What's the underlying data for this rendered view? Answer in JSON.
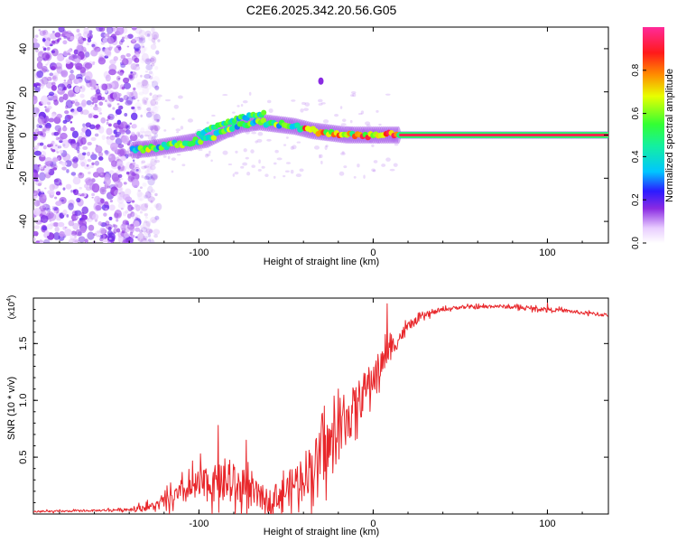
{
  "figure_title": "C2E6.2025.342.20.56.G05",
  "chart_data": [
    {
      "type": "heatmap",
      "title": "C2E6.2025.342.20.56.G05",
      "xlabel": "Height of straight line (km)",
      "ylabel": "Frequency (Hz)",
      "xlim": [
        -195,
        135
      ],
      "ylim": [
        -50,
        50
      ],
      "xticks": [
        -100,
        0,
        100
      ],
      "xtick_labels": [
        "-100",
        "0",
        "100"
      ],
      "yticks": [
        -40,
        -20,
        0,
        20,
        40
      ],
      "ytick_labels": [
        "-40",
        "-20",
        "0",
        "20",
        "40"
      ],
      "colorbar": {
        "label": "Normalized spectral amplitude",
        "range": [
          0,
          1
        ],
        "ticks": [
          0.0,
          0.2,
          0.4,
          0.6,
          0.8
        ],
        "tick_labels": [
          "0.0",
          "0.2",
          "0.4",
          "0.6",
          "0.8"
        ]
      },
      "ridge": {
        "description_points_km_hz": [
          [
            -138,
            -7
          ],
          [
            -125,
            -6
          ],
          [
            -110,
            -4
          ],
          [
            -95,
            -2
          ],
          [
            -85,
            2
          ],
          [
            -75,
            5
          ],
          [
            -65,
            6
          ],
          [
            -55,
            5
          ],
          [
            -45,
            4
          ],
          [
            -35,
            2
          ],
          [
            -25,
            1
          ],
          [
            -15,
            0
          ],
          [
            0,
            0
          ],
          [
            20,
            0
          ],
          [
            60,
            0
          ],
          [
            100,
            0
          ],
          [
            135,
            0
          ]
        ],
        "upper_branch_km_hz": [
          [
            -100,
            0
          ],
          [
            -90,
            4
          ],
          [
            -80,
            7
          ],
          [
            -70,
            9
          ],
          [
            -62,
            10
          ]
        ],
        "outlier_km_hz": [
          -30,
          25
        ]
      },
      "noise_region_km": [
        -195,
        -135
      ]
    },
    {
      "type": "line",
      "title": "",
      "xlabel": "Height of straight line (km)",
      "ylabel": "SNR (10 * v/v)",
      "scale_label": "(x10",
      "scale_exponent": "4",
      "xlim": [
        -195,
        135
      ],
      "ylim": [
        0,
        1.9
      ],
      "xticks": [
        -100,
        0,
        100
      ],
      "xtick_labels": [
        "-100",
        "0",
        "100"
      ],
      "yticks": [
        0.5,
        1.0,
        1.5
      ],
      "ytick_labels": [
        "0.5",
        "1.0",
        "1.5"
      ],
      "color": "#e8262a",
      "envelope": {
        "x": [
          -195,
          -160,
          -140,
          -125,
          -110,
          -100,
          -90,
          -80,
          -70,
          -60,
          -50,
          -40,
          -30,
          -20,
          -10,
          0,
          10,
          20,
          30,
          40,
          50,
          60,
          70,
          80,
          90,
          100,
          110,
          120,
          135
        ],
        "y": [
          0.02,
          0.03,
          0.04,
          0.07,
          0.18,
          0.25,
          0.27,
          0.25,
          0.18,
          0.12,
          0.2,
          0.35,
          0.5,
          0.7,
          0.95,
          1.2,
          1.45,
          1.65,
          1.75,
          1.8,
          1.82,
          1.82,
          1.83,
          1.82,
          1.81,
          1.8,
          1.79,
          1.77,
          1.75
        ]
      },
      "noise_amplitude": [
        0.01,
        0.01,
        0.02,
        0.05,
        0.12,
        0.18,
        0.2,
        0.22,
        0.18,
        0.12,
        0.18,
        0.25,
        0.3,
        0.3,
        0.25,
        0.2,
        0.12,
        0.05,
        0.03,
        0.02,
        0.02,
        0.02,
        0.02,
        0.02,
        0.02,
        0.02,
        0.02,
        0.02,
        0.02
      ],
      "spikes": [
        [
          -89,
          0.78
        ],
        [
          -73,
          0.65
        ],
        [
          -28,
          0.95
        ],
        [
          -20,
          1.1
        ],
        [
          -14,
          0.95
        ],
        [
          -3,
          1.1
        ],
        [
          8,
          1.85
        ],
        [
          100,
          1.86
        ]
      ]
    }
  ]
}
